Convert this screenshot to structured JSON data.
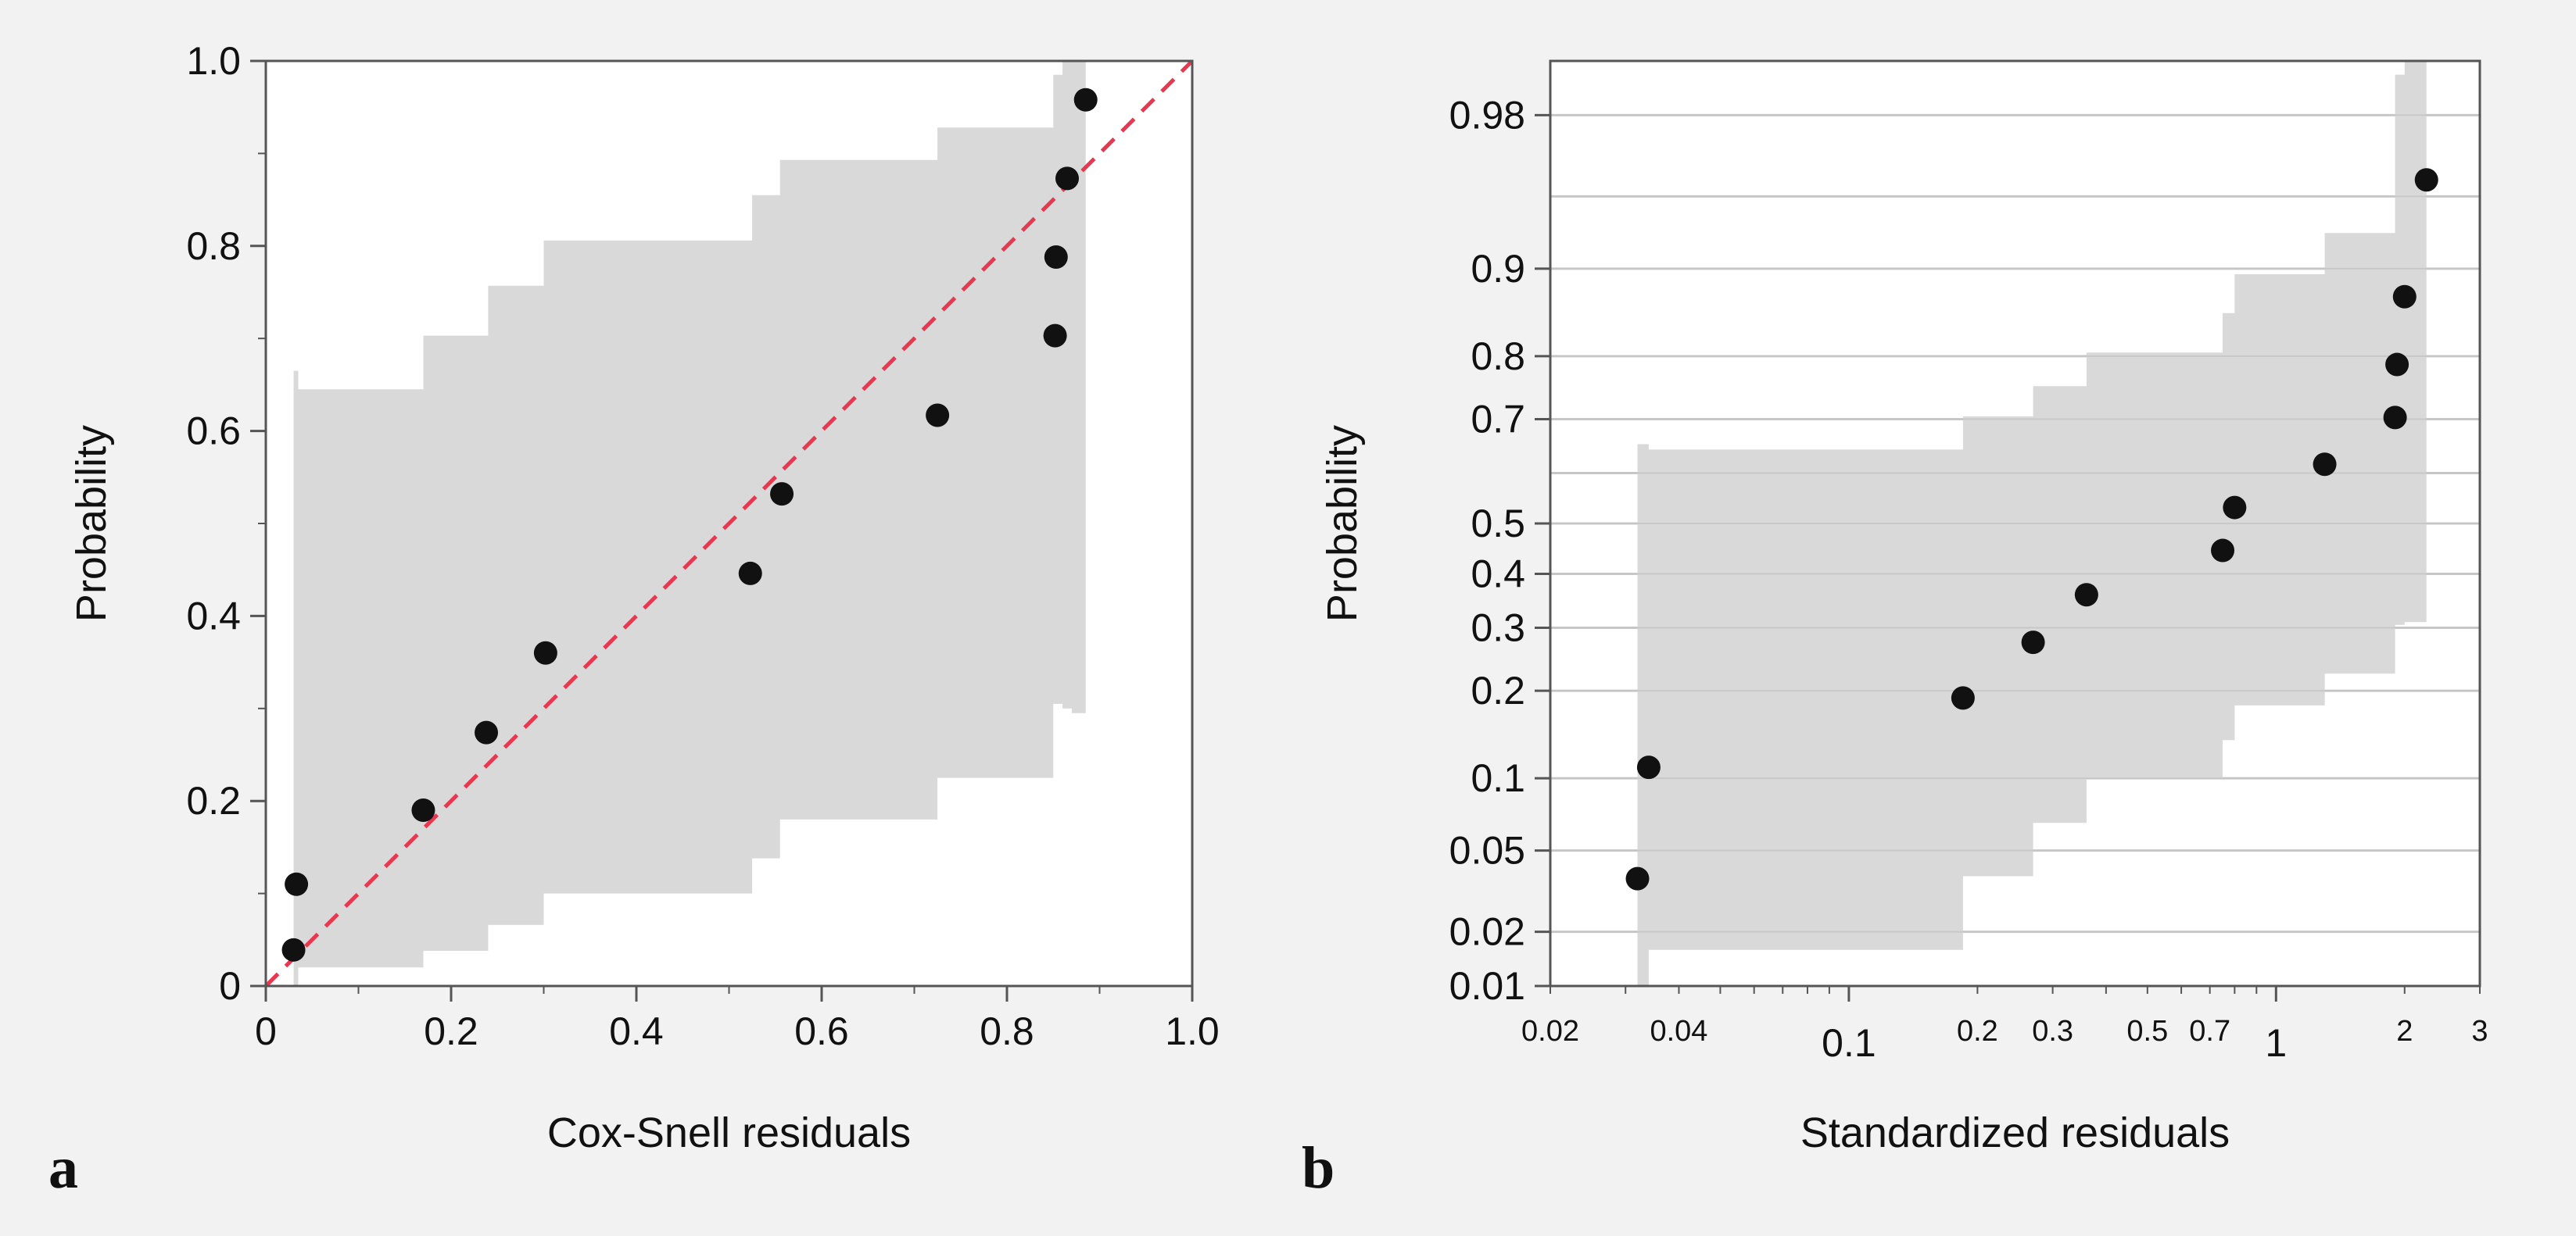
{
  "colors": {
    "background": "#f2f2f2",
    "plot_bg": "#ffffff",
    "band": "#d9d9d9",
    "points": "#111111",
    "reference_line": "#e8384f",
    "gridline": "#cccccc",
    "axis": "#555555",
    "text": "#111111"
  },
  "chart_data": [
    {
      "panel_label": "a",
      "type": "scatter",
      "title": "",
      "xlabel": "Cox-Snell residuals",
      "ylabel": "Probability",
      "xscale": "linear",
      "yscale": "linear",
      "xlim": [
        0,
        1.0
      ],
      "ylim": [
        0,
        1.0
      ],
      "x_ticks": [
        0,
        0.2,
        0.4,
        0.6,
        0.8,
        1.0
      ],
      "x_tick_labels": [
        "0",
        "0.2",
        "0.4",
        "0.6",
        "0.8",
        "1.0"
      ],
      "y_ticks": [
        0,
        0.2,
        0.4,
        0.6,
        0.8,
        1.0
      ],
      "y_tick_labels": [
        "0",
        "0.2",
        "0.4",
        "0.6",
        "0.8",
        "1.0"
      ],
      "x_minor_ticks": [
        0.1,
        0.3,
        0.5,
        0.7,
        0.9
      ],
      "y_minor_ticks": [
        0.1,
        0.3,
        0.5,
        0.7,
        0.9
      ],
      "grid": false,
      "reference_line": {
        "from": [
          0,
          0
        ],
        "to": [
          1.0,
          1.0
        ],
        "style": "dashed"
      },
      "band": {
        "x": [
          0.03,
          0.035,
          0.17,
          0.24,
          0.3,
          0.525,
          0.555,
          0.725,
          0.85,
          0.86,
          0.87,
          0.885
        ],
        "upper": [
          0.665,
          0.645,
          0.703,
          0.757,
          0.806,
          0.855,
          0.893,
          0.928,
          0.985,
          1.0,
          1.0,
          1.0
        ],
        "lower": [
          0.0,
          0.02,
          0.038,
          0.066,
          0.1,
          0.138,
          0.18,
          0.225,
          0.305,
          0.3,
          0.295,
          0.295
        ]
      },
      "points": {
        "x": [
          0.03,
          0.033,
          0.17,
          0.238,
          0.302,
          0.523,
          0.557,
          0.725,
          0.852,
          0.853,
          0.865,
          0.885
        ],
        "y": [
          0.039,
          0.11,
          0.19,
          0.274,
          0.36,
          0.446,
          0.532,
          0.617,
          0.703,
          0.788,
          0.873,
          0.958
        ]
      }
    },
    {
      "panel_label": "b",
      "type": "scatter",
      "title": "",
      "xlabel": "Standardized residuals",
      "ylabel": "Probability",
      "xscale": "log",
      "yscale": "probability",
      "xlim": [
        0.02,
        3
      ],
      "ylim": [
        0.01,
        0.99
      ],
      "x_ticks_small": [
        0.02,
        0.04,
        0.2,
        0.3,
        0.5,
        0.7,
        2,
        3
      ],
      "x_tick_labels_small": [
        "0.02",
        "0.04",
        "0.2",
        "0.3",
        "0.5",
        "0.7",
        "2",
        "3"
      ],
      "x_ticks_large": [
        0.1,
        1
      ],
      "x_tick_labels_large": [
        "0.1",
        "1"
      ],
      "y_ticks": [
        0.01,
        0.02,
        0.05,
        0.1,
        0.2,
        0.3,
        0.4,
        0.5,
        0.7,
        0.8,
        0.9,
        0.98
      ],
      "y_tick_labels": [
        "0.01",
        "0.02",
        "0.05",
        "0.1",
        "0.2",
        "0.3",
        "0.4",
        "0.5",
        "0.7",
        "0.8",
        "0.9",
        "0.98"
      ],
      "y_gridlines": [
        0.01,
        0.02,
        0.05,
        0.1,
        0.2,
        0.3,
        0.4,
        0.5,
        0.6,
        0.7,
        0.8,
        0.9,
        0.95,
        0.98
      ],
      "grid": true,
      "band": {
        "x": [
          0.032,
          0.034,
          0.185,
          0.27,
          0.36,
          0.75,
          0.8,
          1.3,
          1.9,
          2.0,
          2.05,
          2.25
        ],
        "upper": [
          0.655,
          0.645,
          0.705,
          0.755,
          0.805,
          0.855,
          0.895,
          0.928,
          0.988,
          0.99,
          0.99,
          0.99
        ],
        "lower": [
          0.0,
          0.016,
          0.038,
          0.066,
          0.1,
          0.138,
          0.18,
          0.225,
          0.305,
          0.31,
          0.31,
          0.31
        ]
      },
      "points": {
        "x": [
          0.032,
          0.034,
          0.185,
          0.27,
          0.36,
          0.75,
          0.8,
          1.3,
          1.9,
          1.92,
          2.0,
          2.25
        ],
        "y": [
          0.037,
          0.11,
          0.19,
          0.275,
          0.36,
          0.446,
          0.532,
          0.617,
          0.703,
          0.788,
          0.873,
          0.958
        ]
      }
    }
  ]
}
